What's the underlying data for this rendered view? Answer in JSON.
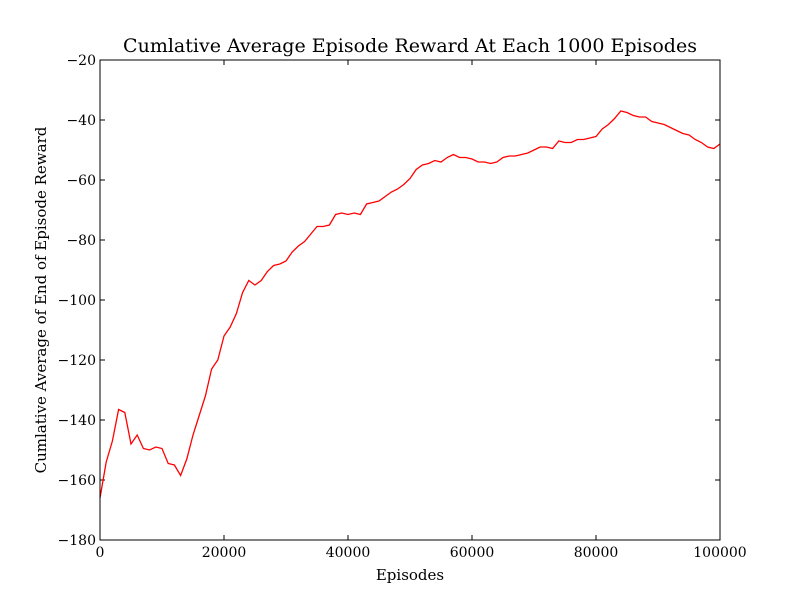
{
  "chart_data": {
    "type": "line",
    "title": "Cumlative Average Episode Reward At Each 1000 Episodes",
    "xlabel": "Episodes",
    "ylabel": "Cumlative Average of End of Episode Reward",
    "xlim": [
      0,
      100000
    ],
    "ylim": [
      -180,
      -20
    ],
    "xticks": [
      0,
      20000,
      40000,
      60000,
      80000,
      100000
    ],
    "xtick_labels": [
      "0",
      "20000",
      "40000",
      "60000",
      "80000",
      "100000"
    ],
    "yticks": [
      -180,
      -160,
      -140,
      -120,
      -100,
      -80,
      -60,
      -40,
      -20
    ],
    "ytick_labels": [
      "−180",
      "−160",
      "−140",
      "−120",
      "−100",
      "−80",
      "−60",
      "−40",
      "−20"
    ],
    "grid": false,
    "legend": "none",
    "line_color": "#ff0000",
    "series": [
      {
        "x": [
          0,
          1000,
          2000,
          3000,
          4000,
          5000,
          6000,
          7000,
          8000,
          9000,
          10000,
          11000,
          12000,
          13000,
          14000,
          15000,
          16000,
          17000,
          18000,
          19000,
          20000,
          21000,
          22000,
          23000,
          24000,
          25000,
          26000,
          27000,
          28000,
          29000,
          30000,
          31000,
          32000,
          33000,
          34000,
          35000,
          36000,
          37000,
          38000,
          39000,
          40000,
          41000,
          42000,
          43000,
          44000,
          45000,
          46000,
          47000,
          48000,
          49000,
          50000,
          51000,
          52000,
          53000,
          54000,
          55000,
          56000,
          57000,
          58000,
          59000,
          60000,
          61000,
          62000,
          63000,
          64000,
          65000,
          66000,
          67000,
          68000,
          69000,
          70000,
          71000,
          72000,
          73000,
          74000,
          75000,
          76000,
          77000,
          78000,
          79000,
          80000,
          81000,
          82000,
          83000,
          84000,
          85000,
          86000,
          87000,
          88000,
          89000,
          90000,
          91000,
          92000,
          93000,
          94000,
          95000,
          96000,
          97000,
          98000,
          99000,
          100000
        ],
        "y": [
          -166,
          -154,
          -147,
          -136.5,
          -137.5,
          -148,
          -145,
          -149.5,
          -150,
          -149,
          -149.5,
          -154.5,
          -155,
          -158.5,
          -153,
          -145,
          -138.5,
          -132,
          -123,
          -120,
          -112,
          -109,
          -104.5,
          -97.5,
          -93.5,
          -95,
          -93.5,
          -90.5,
          -88.5,
          -88,
          -87,
          -84,
          -82,
          -80.5,
          -78,
          -75.5,
          -75.5,
          -75,
          -71.5,
          -71,
          -71.5,
          -71,
          -71.5,
          -68,
          -67.5,
          -67,
          -65.5,
          -64,
          -63,
          -61.5,
          -59.5,
          -56.5,
          -55,
          -54.5,
          -53.5,
          -54,
          -52.5,
          -51.5,
          -52.5,
          -52.5,
          -53,
          -54,
          -54,
          -54.5,
          -54,
          -52.5,
          -52,
          -52,
          -51.5,
          -51,
          -50,
          -49,
          -49,
          -49.5,
          -47,
          -47.5,
          -47.5,
          -46.5,
          -46.5,
          -46,
          -45.5,
          -43,
          -41.5,
          -39.5,
          -37,
          -37.5,
          -38.5,
          -39,
          -39,
          -40.5,
          -41,
          -41.5,
          -42.5,
          -43.5,
          -44.5,
          -45,
          -46.5,
          -47.5,
          -49,
          -49.5,
          -48
        ]
      }
    ]
  }
}
